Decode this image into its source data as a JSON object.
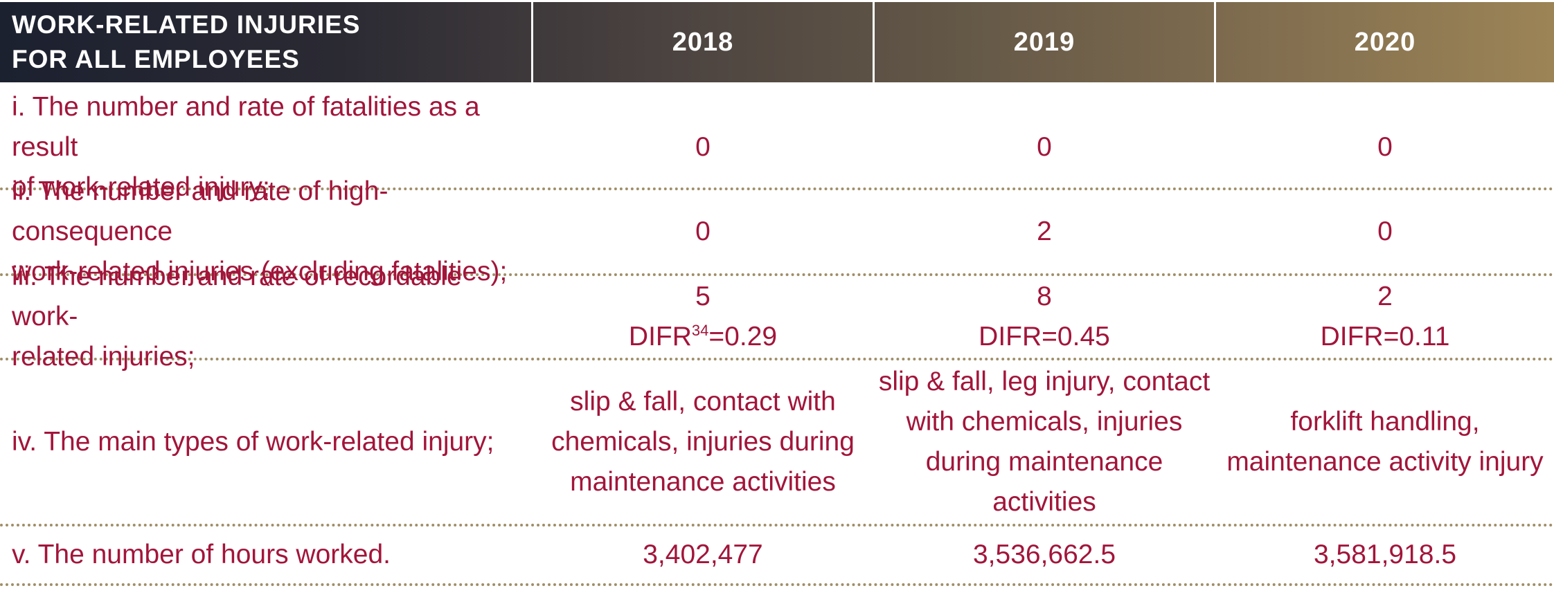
{
  "header": {
    "title_line1": "WORK-RELATED INJURIES",
    "title_line2": "FOR ALL EMPLOYEES",
    "years": [
      "2018",
      "2019",
      "2020"
    ]
  },
  "rows": [
    {
      "label_line1": "i. The number and rate of fatalities as a result",
      "label_line2": "of work-related injury;",
      "values": [
        "0",
        "0",
        "0"
      ]
    },
    {
      "label_line1": "ii. The number and rate of high-consequence",
      "label_line2": "work-related injuries (excluding fatalities);",
      "values": [
        "0",
        "2",
        "0"
      ]
    },
    {
      "label_line1": "iii. The number and rate of recordable work-",
      "label_line2": "related injuries;",
      "values": [
        "5",
        "8",
        "2"
      ],
      "rates": [
        {
          "prefix": "DIFR",
          "sup": "34",
          "suffix": "=0.29"
        },
        {
          "prefix": "DIFR=0.45",
          "sup": "",
          "suffix": ""
        },
        {
          "prefix": "DIFR=0.11",
          "sup": "",
          "suffix": ""
        }
      ]
    },
    {
      "label_line1": "iv. The main types of work-related injury;",
      "values": [
        [
          "slip & fall, contact with",
          "chemicals, injuries during",
          "maintenance activities"
        ],
        [
          "slip & fall, leg injury, contact",
          "with chemicals, injuries",
          "during maintenance",
          "activities"
        ],
        [
          "forklift handling,",
          "maintenance activity injury"
        ]
      ]
    },
    {
      "label_line1": "v. The number of hours worked.",
      "values": [
        "3,402,477",
        "3,536,662.5",
        "3,581,918.5"
      ]
    }
  ]
}
